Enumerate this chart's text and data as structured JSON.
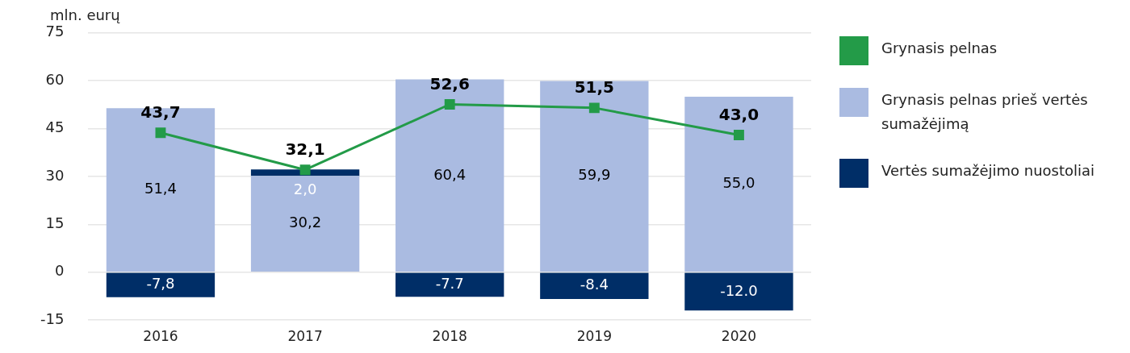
{
  "chart_data": {
    "type": "bar",
    "ylabel": "mln. eurų",
    "categories": [
      "2016",
      "2017",
      "2018",
      "2019",
      "2020"
    ],
    "stacked": true,
    "ylim": [
      -15,
      75
    ],
    "yticks": [
      -15,
      0,
      15,
      30,
      45,
      60,
      75
    ],
    "grid": "y",
    "legend": "right",
    "series": [
      {
        "name": "Grynasis pelnas",
        "type": "line",
        "color": "#239b48",
        "marker": "square",
        "values": [
          43.7,
          32.1,
          52.6,
          51.5,
          43.0
        ],
        "value_labels": [
          "43,7",
          "32,1",
          "52,6",
          "51,5",
          "43,0"
        ]
      },
      {
        "name": "Grynasis pelnas prieš vertės sumažėjimą",
        "color": "#aabbe1",
        "values": [
          51.4,
          30.2,
          60.4,
          59.9,
          55.0
        ],
        "value_labels": [
          "51,4",
          "30,2",
          "60,4",
          "59,9",
          "55,0"
        ]
      },
      {
        "name": "Vertės sumažėjimo nuostoliai",
        "color": "#002e67",
        "values": [
          -7.8,
          2.0,
          -7.7,
          -8.4,
          -12.0
        ],
        "value_labels": [
          "-7,8",
          "2,0",
          "-7.7",
          "-8.4",
          "-12.0"
        ]
      }
    ]
  }
}
